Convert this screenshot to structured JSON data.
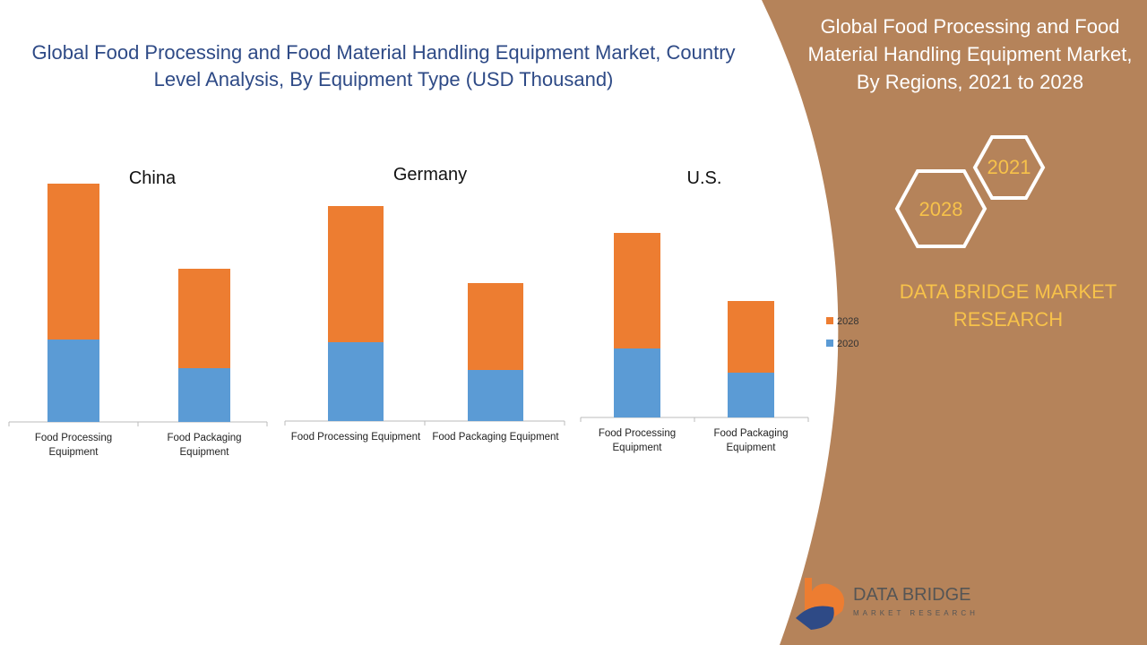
{
  "title": "Global Food Processing and Food Material Handling Equipment Market, Country Level Analysis, By Equipment Type (USD Thousand)",
  "chart_data": [
    {
      "type": "bar",
      "stacked": true,
      "title": "China",
      "categories": [
        "Food Processing Equipment",
        "Food Packaging Equipment"
      ],
      "series": [
        {
          "name": "2020",
          "color": "#5b9bd5",
          "values": [
            92,
            60
          ]
        },
        {
          "name": "2028",
          "color": "#ed7d31",
          "values": [
            174,
            111
          ]
        }
      ],
      "ylim": [
        0,
        300
      ]
    },
    {
      "type": "bar",
      "stacked": true,
      "title": "Germany",
      "categories": [
        "Food Processing Equipment",
        "Food Packaging Equipment"
      ],
      "series": [
        {
          "name": "2020",
          "color": "#5b9bd5",
          "values": [
            88,
            57
          ]
        },
        {
          "name": "2028",
          "color": "#ed7d31",
          "values": [
            152,
            97
          ]
        }
      ],
      "ylim": [
        0,
        300
      ]
    },
    {
      "type": "bar",
      "stacked": true,
      "title": "U.S.",
      "categories": [
        "Food Processing Equipment",
        "Food Packaging Equipment"
      ],
      "series": [
        {
          "name": "2020",
          "color": "#5b9bd5",
          "values": [
            77,
            50
          ]
        },
        {
          "name": "2028",
          "color": "#ed7d31",
          "values": [
            129,
            80
          ]
        }
      ],
      "ylim": [
        0,
        300
      ]
    }
  ],
  "panel": {
    "title": "Global Food Processing and Food Material Handling Equipment Market, By Regions, 2021 to 2028",
    "hex_top": "2021",
    "hex_bottom": "2028",
    "brand": "DATA BRIDGE MARKET RESEARCH"
  },
  "logo": {
    "name": "DATA BRIDGE",
    "tagline": "MARKET RESEARCH"
  }
}
